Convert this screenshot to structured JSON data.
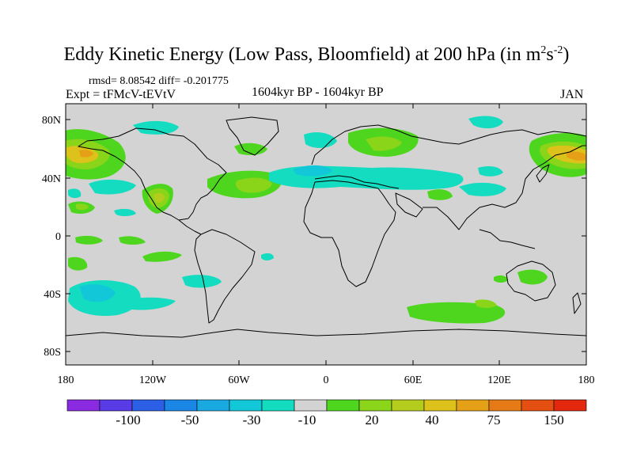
{
  "title_main": "Eddy Kinetic Energy (Low Pass, Bloomfield) at 200 hPa (in m",
  "title_sup1": "2",
  "title_mid": "s",
  "title_sup2": "-2",
  "title_end": ")",
  "stats": "rmsd= 8.08542  diff= -0.201775",
  "expt": "Expt = tFMcV-tEVtV",
  "period": "1604kyr BP - 1604kyr BP",
  "month": "JAN",
  "colors": {
    "land_bg": "#d3d3d3",
    "coast": "#000000"
  },
  "map": {
    "lon_ticks": [
      "180",
      "120W",
      "60W",
      "0",
      "60E",
      "120E",
      "180"
    ],
    "lat_ticks": [
      "80N",
      "40N",
      "0",
      "40S",
      "80S"
    ]
  },
  "colorbar": {
    "colors": [
      "#8a2be2",
      "#5a3ce6",
      "#2a5fe6",
      "#1a87e6",
      "#1aa8e0",
      "#12c8d8",
      "#14dcc0",
      "#d3d3d3",
      "#4ed61e",
      "#8ad41a",
      "#b4cc1c",
      "#dcc21a",
      "#e6a018",
      "#e67a16",
      "#e45012",
      "#e4280e"
    ],
    "labels": [
      "-100",
      "-50",
      "-30",
      "-10",
      "20",
      "40",
      "75",
      "150"
    ]
  },
  "features": [
    {
      "name": "north-pacific-positive",
      "kind": "pos"
    },
    {
      "name": "west-pacific-positive",
      "kind": "pos"
    },
    {
      "name": "north-atlantic-positive",
      "kind": "pos"
    },
    {
      "name": "europe-positive",
      "kind": "pos"
    },
    {
      "name": "south-indian-positive",
      "kind": "pos"
    },
    {
      "name": "australia-positive",
      "kind": "pos"
    },
    {
      "name": "mediterranean-negative",
      "kind": "neg"
    },
    {
      "name": "arctic-negative",
      "kind": "neg"
    },
    {
      "name": "south-pacific-negative",
      "kind": "neg"
    }
  ]
}
